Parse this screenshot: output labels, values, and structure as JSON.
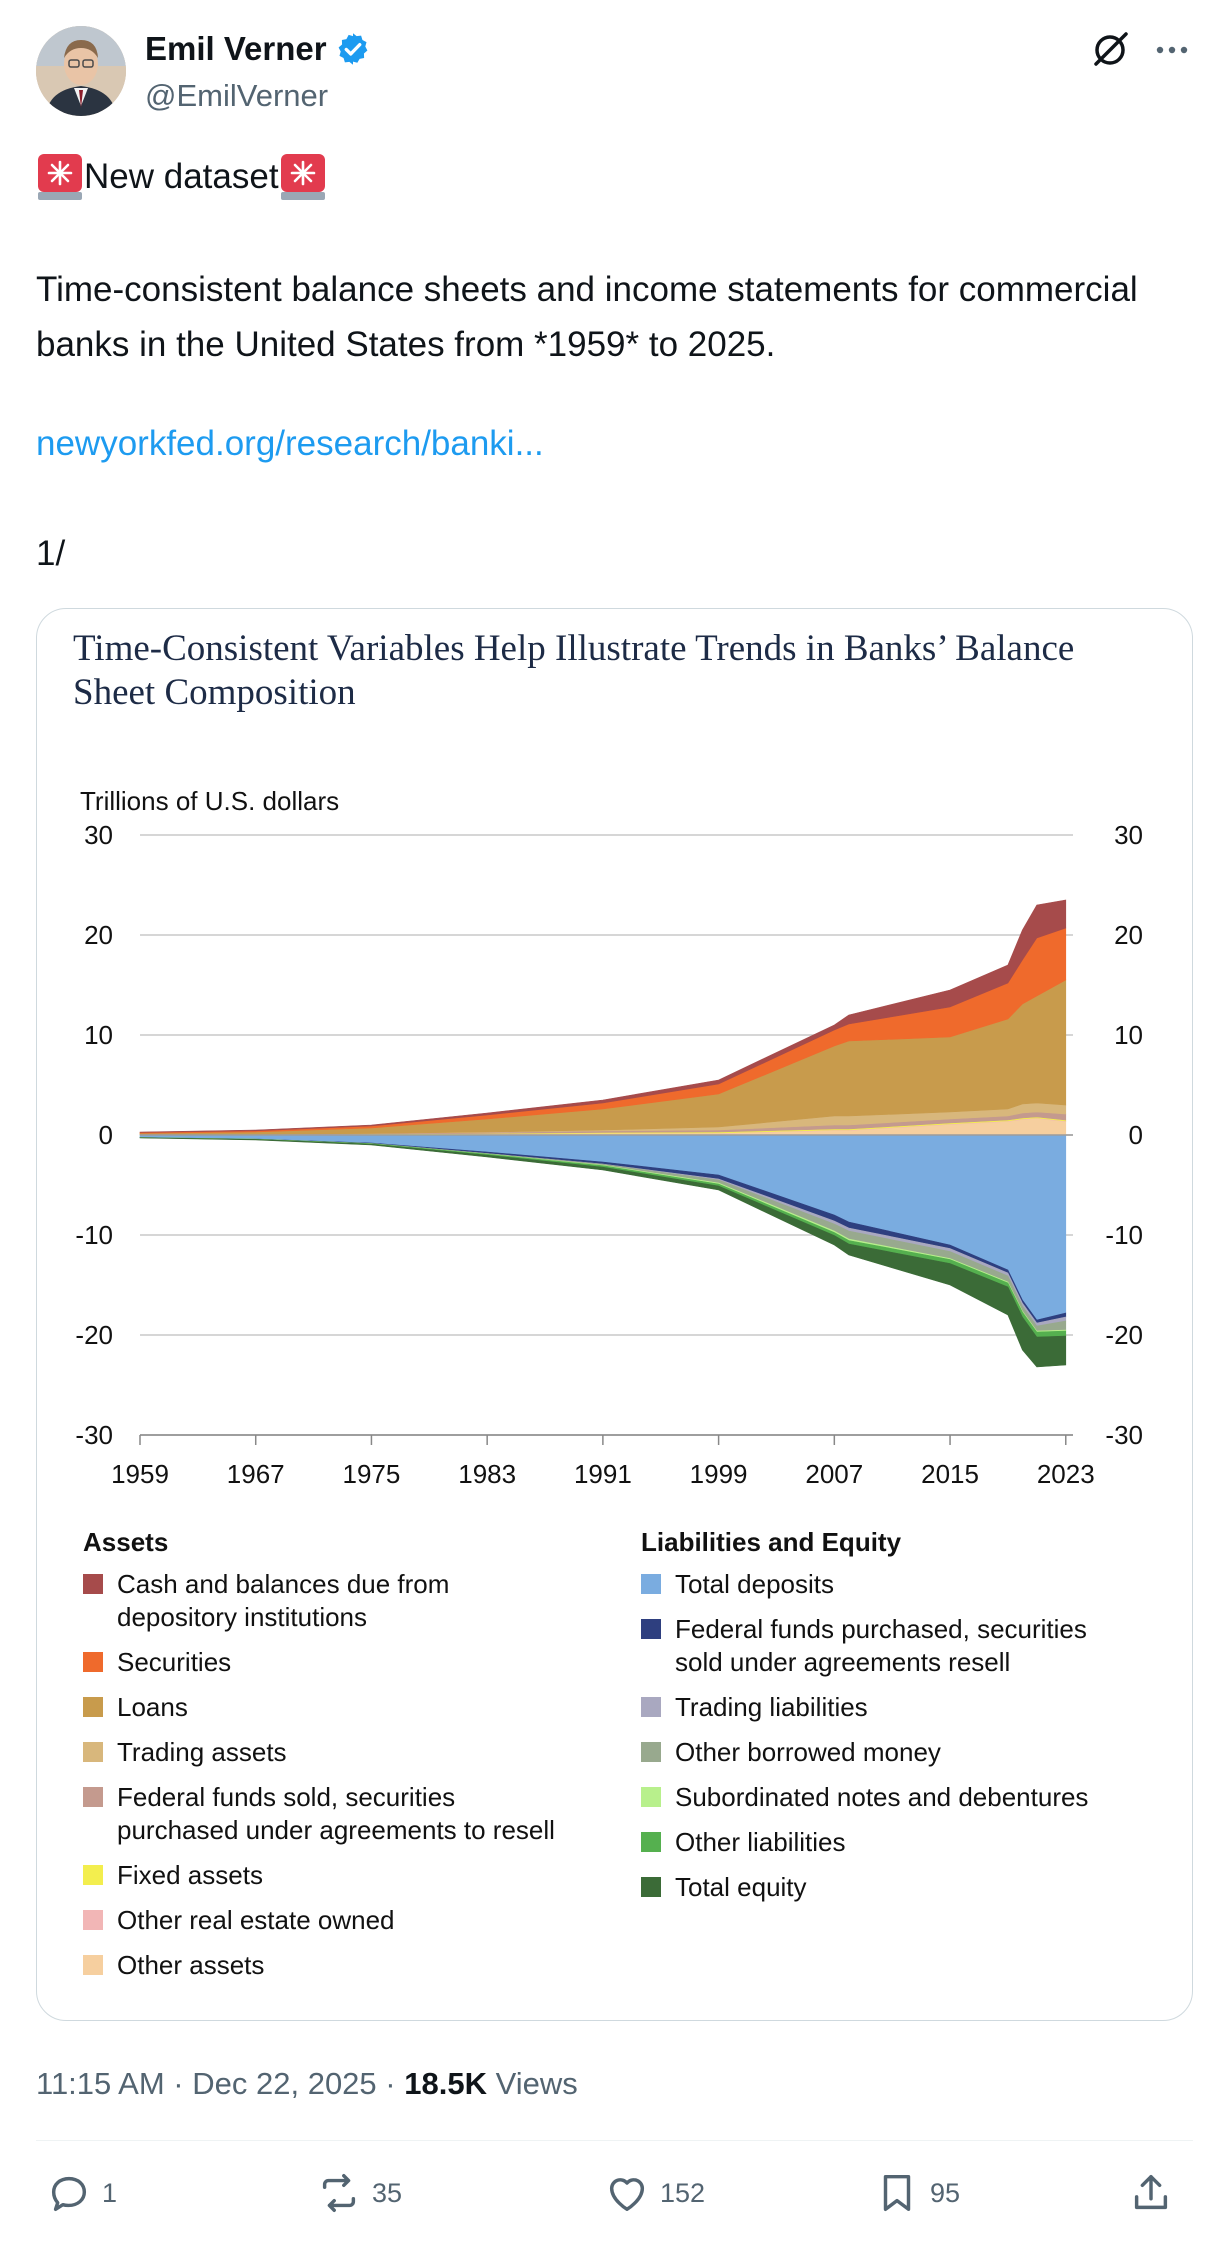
{
  "author": {
    "name": "Emil Verner",
    "handle": "@EmilVerner",
    "verified_color": "#1d9bf0",
    "avatar_icon": "avatar-photo"
  },
  "post": {
    "headline": "New dataset",
    "body": "Time-consistent balance sheets and income statements for commercial banks in the United States from *1959* to 2025.",
    "link": "newyorkfed.org/research/banki...",
    "thread_counter": "1/",
    "link_color": "#1d9bf0"
  },
  "chart_data": {
    "type": "area",
    "title": "Time-Consistent Variables Help Illustrate Trends in Banks’ Balance Sheet Composition",
    "ylabel": "Trillions of U.S. dollars",
    "ylim": [
      -30,
      30
    ],
    "yticks": [
      "30",
      "20",
      "10",
      "0",
      "-10",
      "-20",
      "-30"
    ],
    "xticks": [
      "1959",
      "1967",
      "1975",
      "1983",
      "1991",
      "1999",
      "2007",
      "2015",
      "2023"
    ],
    "x": [
      1959,
      1967,
      1975,
      1983,
      1991,
      1999,
      2007,
      2008,
      2015,
      2019,
      2020,
      2021,
      2023
    ],
    "assets_total": [
      0.3,
      0.5,
      1.0,
      2.2,
      3.5,
      5.5,
      11.0,
      12.0,
      14.5,
      17.0,
      20.5,
      23.0,
      23.5
    ],
    "liabilities_total": [
      -0.3,
      -0.5,
      -1.0,
      -2.2,
      -3.5,
      -5.5,
      -11.0,
      -12.0,
      -15.0,
      -18.0,
      -21.5,
      -23.2,
      -23.0
    ],
    "assets": {
      "heading": "Assets",
      "series": [
        {
          "name": "Cash and balances due from depository institutions",
          "line1": "Cash and balances due from",
          "line2": "depository institutions",
          "color": "#a64b4b",
          "values": [
            0.05,
            0.08,
            0.1,
            0.2,
            0.3,
            0.4,
            0.5,
            0.9,
            1.7,
            1.8,
            3.0,
            3.3,
            2.8
          ]
        },
        {
          "name": "Securities",
          "line1": "Securities",
          "color": "#ef6a2c",
          "values": [
            0.08,
            0.12,
            0.2,
            0.4,
            0.6,
            1.0,
            1.6,
            1.7,
            3.0,
            3.6,
            4.4,
            5.8,
            5.2
          ]
        },
        {
          "name": "Loans",
          "line1": "Loans",
          "color": "#c89b4c",
          "values": [
            0.12,
            0.22,
            0.55,
            1.3,
            2.1,
            3.3,
            7.0,
            7.5,
            7.5,
            9.0,
            10.0,
            10.7,
            12.5
          ]
        },
        {
          "name": "Trading assets",
          "line1": "Trading assets",
          "color": "#d8b77c",
          "values": [
            0.0,
            0.0,
            0.0,
            0.05,
            0.1,
            0.3,
            0.9,
            0.9,
            0.7,
            0.7,
            0.9,
            0.9,
            0.9
          ]
        },
        {
          "name": "Federal funds sold, securities purchased under agreements to resell",
          "line1": "Federal funds sold, securities",
          "line2": "purchased under agreements to resell",
          "color": "#c49a8e",
          "values": [
            0.02,
            0.03,
            0.05,
            0.1,
            0.15,
            0.2,
            0.4,
            0.4,
            0.4,
            0.4,
            0.5,
            0.5,
            0.6
          ]
        },
        {
          "name": "Fixed assets",
          "line1": "Fixed assets",
          "color": "#f3ee4e",
          "values": [
            0.01,
            0.01,
            0.03,
            0.05,
            0.08,
            0.1,
            0.1,
            0.1,
            0.1,
            0.1,
            0.1,
            0.1,
            0.1
          ]
        },
        {
          "name": "Other real estate owned",
          "line1": "Other real estate owned",
          "color": "#f2b6b6",
          "values": [
            0.0,
            0.0,
            0.0,
            0.0,
            0.02,
            0.02,
            0.05,
            0.05,
            0.05,
            0.05,
            0.05,
            0.05,
            0.05
          ]
        },
        {
          "name": "Other assets",
          "line1": "Other assets",
          "color": "#f6cf9f",
          "values": [
            0.02,
            0.04,
            0.07,
            0.1,
            0.15,
            0.18,
            0.45,
            0.45,
            1.05,
            1.35,
            1.55,
            1.65,
            1.35
          ]
        }
      ]
    },
    "liabilities": {
      "heading": "Liabilities and Equity",
      "series": [
        {
          "name": "Total deposits",
          "line1": "Total deposits",
          "color": "#7aace0",
          "values": [
            -0.25,
            -0.4,
            -0.8,
            -1.7,
            -2.7,
            -4.0,
            -8.0,
            -8.7,
            -11.0,
            -13.5,
            -16.5,
            -18.5,
            -17.8
          ]
        },
        {
          "name": "Federal funds purchased, securities sold under agreements resell",
          "line1": "Federal funds purchased, securities",
          "line2": "sold under agreements resell",
          "color": "#2e3f7f",
          "values": [
            -0.01,
            -0.02,
            -0.05,
            -0.15,
            -0.2,
            -0.4,
            -0.6,
            -0.6,
            -0.35,
            -0.3,
            -0.3,
            -0.3,
            -0.4
          ]
        },
        {
          "name": "Trading liabilities",
          "line1": "Trading liabilities",
          "color": "#a9a8c0",
          "values": [
            0.0,
            0.0,
            0.0,
            0.0,
            -0.02,
            -0.1,
            -0.3,
            -0.3,
            -0.3,
            -0.3,
            -0.3,
            -0.3,
            -0.4
          ]
        },
        {
          "name": "Other borrowed money",
          "line1": "Other borrowed money",
          "color": "#98a98e",
          "values": [
            0.0,
            0.0,
            -0.02,
            -0.05,
            -0.1,
            -0.3,
            -0.7,
            -0.8,
            -0.7,
            -0.6,
            -0.5,
            -0.5,
            -0.9
          ]
        },
        {
          "name": "Subordinated notes and debentures",
          "line1": "Subordinated notes and debentures",
          "color": "#b8f08c",
          "values": [
            0.0,
            0.0,
            0.0,
            -0.02,
            -0.05,
            -0.1,
            -0.15,
            -0.15,
            -0.1,
            -0.1,
            -0.1,
            -0.1,
            -0.1
          ]
        },
        {
          "name": "Other liabilities",
          "line1": "Other liabilities",
          "color": "#55b04f",
          "values": [
            -0.01,
            -0.02,
            -0.05,
            -0.1,
            -0.15,
            -0.2,
            -0.3,
            -0.35,
            -0.4,
            -0.4,
            -0.5,
            -0.5,
            -0.5
          ]
        },
        {
          "name": "Total equity",
          "line1": "Total equity",
          "color": "#3b6b37",
          "values": [
            -0.03,
            -0.06,
            -0.08,
            -0.18,
            -0.28,
            -0.4,
            -0.95,
            -1.1,
            -2.15,
            -2.8,
            -3.3,
            -3.0,
            -2.9
          ]
        }
      ]
    }
  },
  "meta": {
    "time": "11:15 AM",
    "separator": " · ",
    "date": "Dec 22, 2025",
    "views_count": "18.5K",
    "views_label": " Views"
  },
  "actions": {
    "replies": "1",
    "reposts": "35",
    "likes": "152",
    "bookmarks": "95"
  }
}
